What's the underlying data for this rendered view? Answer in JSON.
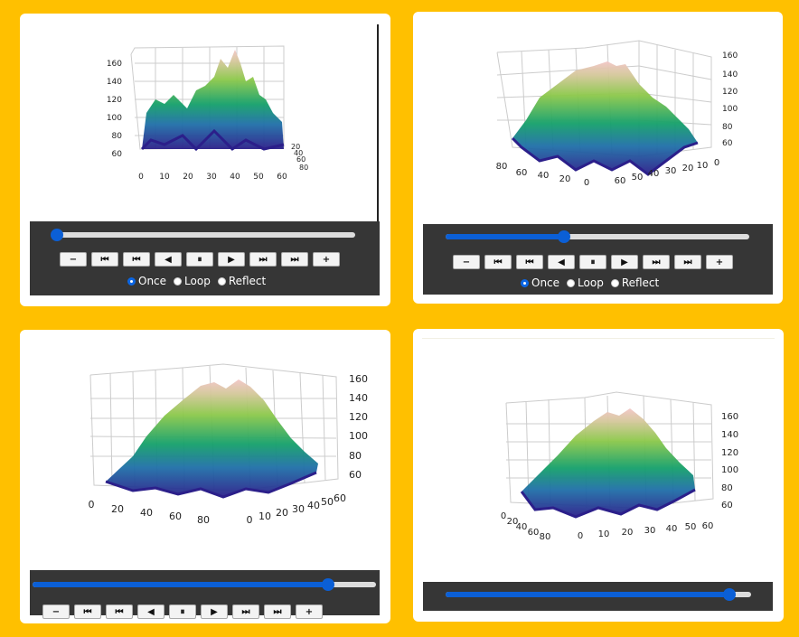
{
  "controls": {
    "buttons": [
      "−",
      "⏮",
      "⏮",
      "◀",
      "⏸",
      "▶",
      "⏭",
      "⏭",
      "+"
    ],
    "button_names": [
      "slower-button",
      "first-frame-button",
      "step-back-button",
      "play-reverse-button",
      "pause-button",
      "play-button",
      "step-forward-button",
      "last-frame-button",
      "faster-button"
    ],
    "radio_options": [
      "Once",
      "Loop",
      "Reflect"
    ],
    "selected": "Once"
  },
  "panels": [
    {
      "slider_progress": 0.0,
      "z_ticks": [
        "160",
        "140",
        "120",
        "100",
        "80",
        "60"
      ],
      "x_ticks": [
        "0",
        "10",
        "20",
        "30",
        "40",
        "50",
        "60"
      ],
      "y_ticks": [
        "20",
        "40",
        "60",
        "80"
      ]
    },
    {
      "slider_progress": 0.39,
      "z_ticks": [
        "160",
        "140",
        "120",
        "100",
        "80",
        "60"
      ],
      "x_ticks": [
        "80",
        "60",
        "40",
        "20",
        "0"
      ],
      "y_ticks": [
        "60",
        "50",
        "40",
        "30",
        "20",
        "10",
        "0"
      ]
    },
    {
      "slider_progress": 0.86,
      "z_ticks": [
        "160",
        "140",
        "120",
        "100",
        "80",
        "60"
      ],
      "x_ticks": [
        "0",
        "20",
        "40",
        "60",
        "80"
      ],
      "y_ticks": [
        "0",
        "10",
        "20",
        "30",
        "40",
        "50",
        "60"
      ]
    },
    {
      "slider_progress": 0.93,
      "z_ticks": [
        "160",
        "140",
        "120",
        "100",
        "80",
        "60"
      ],
      "x_ticks": [
        "0",
        "20",
        "40",
        "60",
        "80"
      ],
      "y_ticks": [
        "0",
        "10",
        "20",
        "30",
        "40",
        "50",
        "60"
      ]
    }
  ]
}
